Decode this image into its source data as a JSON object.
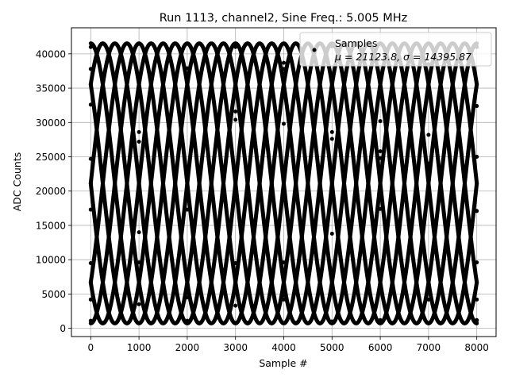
{
  "chart_data": {
    "type": "scatter",
    "title": "Run 1113, channel2, Sine Freq.: 5.005 MHz",
    "xlabel": "Sample #",
    "ylabel": "ADC Counts",
    "xlim": [
      -400,
      8400
    ],
    "ylim": [
      -1200,
      43800
    ],
    "xticks": [
      0,
      1000,
      2000,
      3000,
      4000,
      5000,
      6000,
      7000,
      8000
    ],
    "yticks": [
      0,
      5000,
      10000,
      15000,
      20000,
      25000,
      30000,
      35000,
      40000
    ],
    "grid": true,
    "legend": {
      "placement": "upper-right",
      "entries": [
        "Samples",
        "μ = 21123.8, σ = 14395.87"
      ]
    },
    "signal": {
      "mean": 21123.8,
      "amplitude": 20400,
      "period_samples": 2000,
      "num_phases": 8,
      "n_samples": 8001
    },
    "series": [
      {
        "x": [
          0,
          250,
          1250,
          2250,
          3250,
          4250,
          5250,
          6250,
          7250,
          8000
        ],
        "y": [
          41000,
          41500,
          41500,
          41500,
          41500,
          41500,
          41500,
          41500,
          41500,
          41000
        ]
      },
      {
        "x": [
          0,
          1000,
          2000,
          3000,
          4000,
          5000,
          6000,
          7000,
          8000
        ],
        "y": [
          37800,
          35600,
          33800,
          31600,
          29800,
          27600,
          25800,
          24000,
          25000
        ]
      },
      {
        "x": [
          0,
          1000,
          2000,
          3000,
          4000,
          5000,
          6000,
          7000,
          8000
        ],
        "y": [
          32600,
          27200,
          17300,
          9500,
          4200,
          1000,
          1200,
          4200,
          9600
        ]
      },
      {
        "x": [
          0,
          1000,
          2000,
          3000,
          4000,
          5000,
          6000,
          7000,
          8000
        ],
        "y": [
          24700,
          14000,
          4500,
          800,
          4800,
          13800,
          24800,
          34000,
          32400
        ]
      },
      {
        "x": [
          0,
          1000,
          2000,
          3000,
          4000,
          5000,
          6000,
          7000,
          8000
        ],
        "y": [
          17300,
          28600,
          37900,
          41000,
          37800,
          28600,
          17400,
          8200,
          17100
        ]
      },
      {
        "x": [
          0,
          1000,
          2000,
          3000,
          4000,
          5000,
          6000,
          7000,
          8000
        ],
        "y": [
          9500,
          3500,
          1100,
          3300,
          9600,
          19300,
          30200,
          38500,
          4200
        ]
      },
      {
        "x": [
          0,
          250,
          1250,
          2250,
          3250,
          4250,
          5250,
          6250,
          7250,
          8000
        ],
        "y": [
          1100,
          800,
          800,
          800,
          800,
          800,
          800,
          800,
          800,
          1200
        ]
      },
      {
        "x": [
          0,
          1000,
          2000,
          3000,
          4000,
          5000,
          6000,
          7000,
          8000
        ],
        "y": [
          4200,
          9600,
          20000,
          30400,
          38700,
          41100,
          37100,
          28200,
          1100
        ]
      }
    ]
  }
}
